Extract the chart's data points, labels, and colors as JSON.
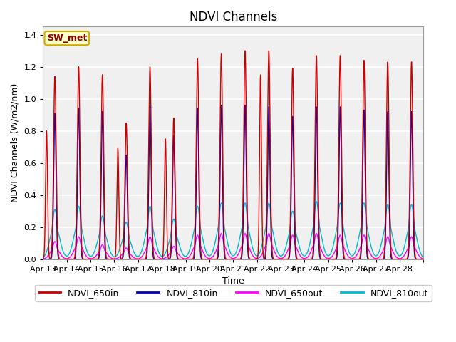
{
  "title": "NDVI Channels",
  "xlabel": "Time",
  "ylabel": "NDVI Channels (W/m2/nm)",
  "annotation": "SW_met",
  "annotation_color": "#8b0000",
  "annotation_bg": "#ffffcc",
  "annotation_border": "#ccaa00",
  "series": [
    "NDVI_650in",
    "NDVI_810in",
    "NDVI_650out",
    "NDVI_810out"
  ],
  "colors": [
    "#cc0000",
    "#0000bb",
    "#ff00ff",
    "#00bbcc"
  ],
  "ylim": [
    0.0,
    1.45
  ],
  "title_fontsize": 12,
  "label_fontsize": 9,
  "tick_fontsize": 8,
  "legend_fontsize": 9,
  "days": [
    "Apr 13",
    "Apr 14",
    "Apr 15",
    "Apr 16",
    "Apr 17",
    "Apr 18",
    "Apr 19",
    "Apr 20",
    "Apr 21",
    "Apr 22",
    "Apr 23",
    "Apr 24",
    "Apr 25",
    "Apr 26",
    "Apr 27",
    "Apr 28"
  ],
  "peak_650in": [
    1.14,
    1.2,
    1.15,
    0.85,
    1.2,
    0.88,
    1.25,
    1.28,
    1.3,
    1.3,
    1.19,
    1.27,
    1.27,
    1.24,
    1.23,
    1.23
  ],
  "peak_810in": [
    0.91,
    0.94,
    0.92,
    0.65,
    0.96,
    0.77,
    0.94,
    0.96,
    0.96,
    0.95,
    0.89,
    0.95,
    0.95,
    0.93,
    0.92,
    0.92
  ],
  "peak_650out": [
    0.11,
    0.14,
    0.09,
    0.07,
    0.14,
    0.08,
    0.15,
    0.16,
    0.16,
    0.16,
    0.15,
    0.16,
    0.15,
    0.15,
    0.14,
    0.14
  ],
  "peak_810out": [
    0.31,
    0.33,
    0.27,
    0.23,
    0.33,
    0.25,
    0.33,
    0.35,
    0.35,
    0.35,
    0.3,
    0.36,
    0.35,
    0.35,
    0.34,
    0.34
  ],
  "secondary_650in": [
    0.8,
    0.0,
    0.0,
    0.69,
    0.0,
    0.75,
    0.0,
    0.0,
    0.0,
    1.15,
    0.0,
    0.0,
    0.0,
    0.0,
    0.0,
    0.0
  ],
  "secondary_offset": [
    0.35,
    0.0,
    0.0,
    0.35,
    0.0,
    0.35,
    0.0,
    0.0,
    0.0,
    0.35,
    0.0,
    0.0,
    0.0,
    0.0,
    0.0,
    0.0
  ]
}
